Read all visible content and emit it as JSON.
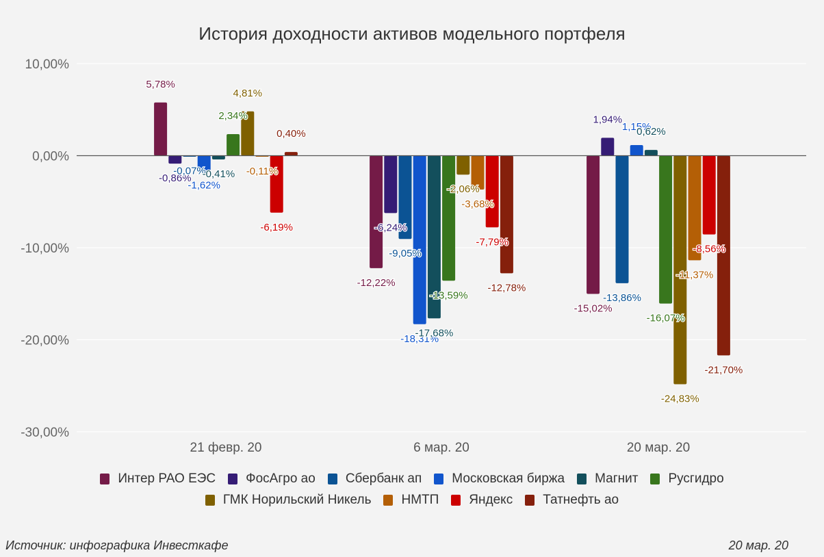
{
  "chart_data": {
    "type": "bar",
    "title": "История доходности активов модельного портфеля",
    "xlabel": "",
    "ylabel": "",
    "ylim": [
      -30,
      10
    ],
    "yticks": [
      10,
      0,
      -10,
      -20,
      -30
    ],
    "ytick_labels": [
      "10,00%",
      "0,00%",
      "-10,00%",
      "-20,00%",
      "-30,00%"
    ],
    "grid": true,
    "legend_position": "bottom",
    "categories": [
      "21 февр. 20",
      "6 мар. 20",
      "20 мар. 20"
    ],
    "series": [
      {
        "name": "Интер РАО ЕЭС",
        "color": "#741b47",
        "values": [
          5.78,
          -12.22,
          -15.02
        ],
        "labels": [
          "5,78%",
          "-12,22%",
          "-15,02%"
        ]
      },
      {
        "name": "ФосАгро ао",
        "color": "#351c75",
        "values": [
          -0.86,
          -6.24,
          1.94
        ],
        "labels": [
          "-0,86%",
          "-6,24%",
          "1,94%"
        ]
      },
      {
        "name": "Сбербанк ап",
        "color": "#0b5394",
        "values": [
          -0.07,
          -9.05,
          -13.86
        ],
        "labels": [
          "-0,07%",
          "-9,05%",
          "-13,86%"
        ]
      },
      {
        "name": "Московская биржа",
        "color": "#1155cc",
        "values": [
          -1.62,
          -18.31,
          1.15
        ],
        "labels": [
          "-1,62%",
          "-18,31%",
          "1,15%"
        ]
      },
      {
        "name": "Магнит",
        "color": "#134f5c",
        "values": [
          -0.41,
          -17.68,
          0.62
        ],
        "labels": [
          "-0,41%",
          "-17,68%",
          "0,62%"
        ]
      },
      {
        "name": "Русгидро",
        "color": "#38761d",
        "values": [
          2.34,
          -13.59,
          -16.07
        ],
        "labels": [
          "2,34%",
          "-13,59%",
          "-16,07%"
        ]
      },
      {
        "name": "ГМК Норильский Никель",
        "color": "#7f6000",
        "values": [
          4.81,
          -2.06,
          -24.83
        ],
        "labels": [
          "4,81%",
          "-2,06%",
          "-24,83%"
        ]
      },
      {
        "name": "НМТП",
        "color": "#b45f06",
        "values": [
          -0.11,
          -3.68,
          -11.37
        ],
        "labels": [
          "-0,11%",
          "-3,68%",
          "-11,37%"
        ]
      },
      {
        "name": "Яндекс",
        "color": "#cc0000",
        "values": [
          -6.19,
          -7.79,
          -8.56
        ],
        "labels": [
          "-6,19%",
          "-7,79%",
          "-8,56%"
        ]
      },
      {
        "name": "Татнефть ао",
        "color": "#85200c",
        "values": [
          0.4,
          -12.78,
          -21.7
        ],
        "labels": [
          "0,40%",
          "-12,78%",
          "-21,70%"
        ]
      }
    ]
  },
  "footer": {
    "source": "Источник: инфографика Инвесткафе",
    "date": "20 мар. 20"
  }
}
